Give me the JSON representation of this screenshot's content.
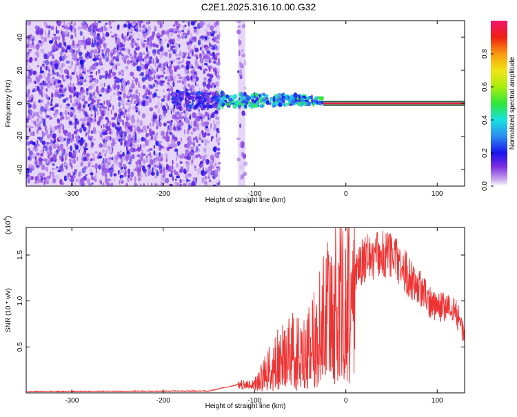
{
  "title": "C2E1.2025.316.10.00.G32",
  "chart_data": [
    {
      "type": "heatmap",
      "name": "spectrogram",
      "xlabel": "Height of straight line (km)",
      "ylabel": "Frequency (Hz)",
      "xlim": [
        -350,
        130
      ],
      "ylim": [
        -50,
        50
      ],
      "xticks": [
        -300,
        -200,
        -100,
        0,
        100
      ],
      "yticks": [
        -40,
        -20,
        0,
        20,
        40
      ],
      "xtick_labels": [
        "-300",
        "-200",
        "-100",
        "0",
        "100"
      ],
      "ytick_labels": [
        "-40",
        "-20",
        "0",
        "20",
        "40"
      ],
      "colorbar": {
        "label": "Normalized spectral amplitude",
        "range": [
          0,
          1
        ],
        "ticks": [
          0.0,
          0.2,
          0.4,
          0.6,
          0.8
        ],
        "tick_labels": [
          "0.0",
          "0.2",
          "0.4",
          "0.6",
          "0.8"
        ]
      },
      "regions": [
        {
          "desc": "noise",
          "x_range": [
            -350,
            -138
          ],
          "y_range": [
            -50,
            50
          ],
          "amplitude": 0.1
        },
        {
          "desc": "noise-strip",
          "x_range": [
            -118,
            -110
          ],
          "y_range": [
            -50,
            50
          ],
          "amplitude": 0.08
        },
        {
          "desc": "turbulent-signal",
          "x_range": [
            -190,
            -25
          ],
          "y_range": [
            -3,
            7
          ],
          "amplitude": 0.4
        },
        {
          "desc": "carrier",
          "x_range": [
            -25,
            130
          ],
          "y_range": [
            -1,
            1
          ],
          "amplitude": 0.97
        }
      ]
    },
    {
      "type": "line",
      "name": "snr",
      "xlabel": "Height of straight line (km)",
      "ylabel": "SNR (10 * v/v)",
      "y_multiplier": "(x10",
      "y_multiplier_exp": "4",
      "y_multiplier_close": ")",
      "xlim": [
        -350,
        130
      ],
      "ylim": [
        0,
        1.8
      ],
      "xticks": [
        -300,
        -200,
        -100,
        0,
        100
      ],
      "yticks": [
        0.5,
        1.0,
        1.5
      ],
      "xtick_labels": [
        "-300",
        "-200",
        "-100",
        "0",
        "100"
      ],
      "ytick_labels": [
        "0.5",
        "1.0",
        "1.5"
      ],
      "color": "#ee3333",
      "envelope_x": [
        -350,
        -150,
        -118,
        -100,
        -90,
        -80,
        -70,
        -60,
        -50,
        -40,
        -30,
        -20,
        -10,
        0,
        10,
        20,
        30,
        40,
        50,
        60,
        70,
        80,
        90,
        100,
        110,
        120,
        130
      ],
      "envelope_y": [
        0.015,
        0.02,
        0.09,
        0.09,
        0.22,
        0.35,
        0.45,
        0.5,
        0.5,
        0.55,
        0.75,
        0.95,
        1.05,
        1.15,
        1.3,
        1.45,
        1.5,
        1.5,
        1.5,
        1.4,
        1.25,
        1.15,
        1.0,
        0.95,
        0.92,
        0.9,
        0.62
      ]
    }
  ]
}
